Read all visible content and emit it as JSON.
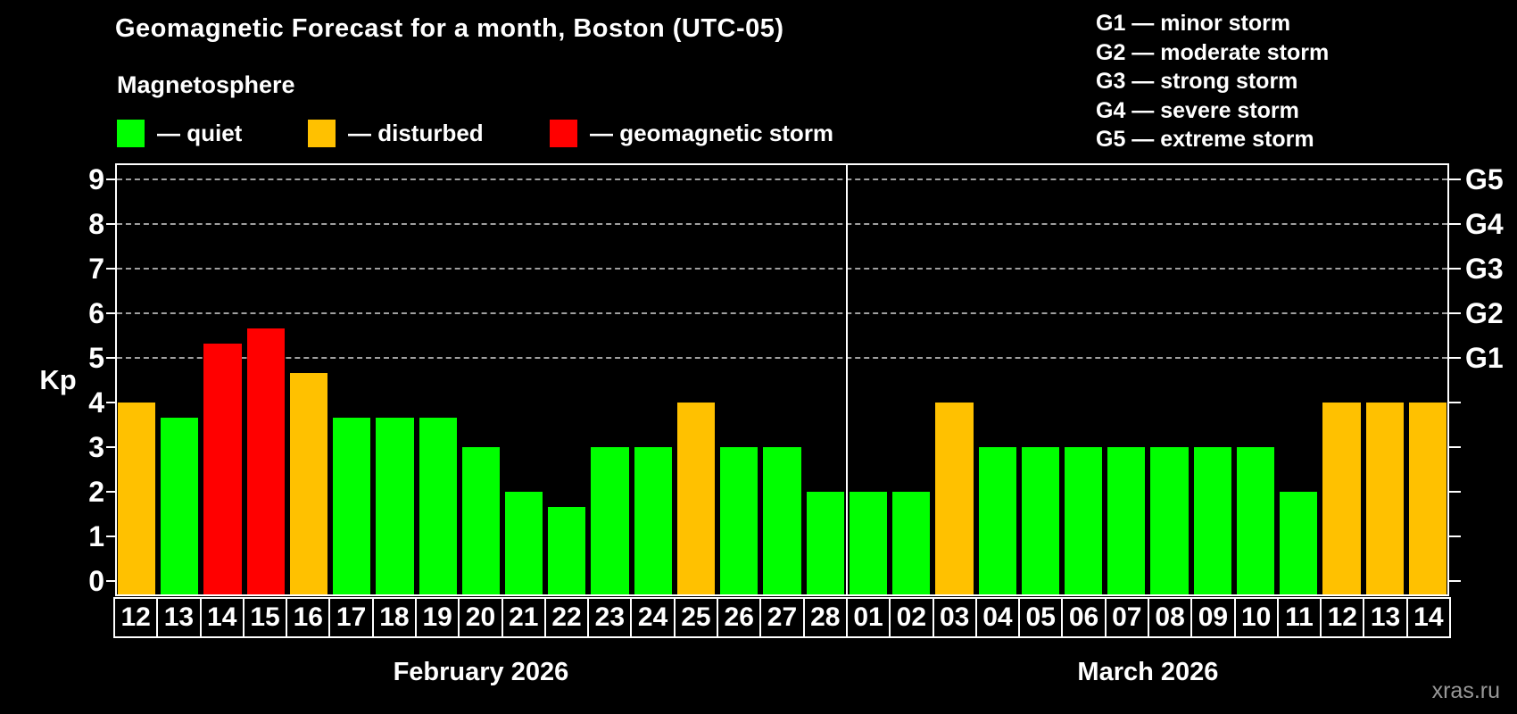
{
  "watermark": "xras.ru",
  "chart_data": {
    "type": "bar",
    "title": "Geomagnetic Forecast for a month, Boston (UTC-05)",
    "subtitle": "Magnetosphere",
    "ylabel": "Kp",
    "ylim": [
      0,
      9
    ],
    "y_ticks": [
      0,
      1,
      2,
      3,
      4,
      5,
      6,
      7,
      8,
      9
    ],
    "gridline_kp_levels": [
      5,
      6,
      7,
      8,
      9
    ],
    "grid": "dashed horizontal lines at storm levels only",
    "legend_items": [
      {
        "label": "— quiet",
        "status": "quiet",
        "color": "#00ff00"
      },
      {
        "label": "— disturbed",
        "status": "disturbed",
        "color": "#ffc100"
      },
      {
        "label": "— geomagnetic storm",
        "status": "storm",
        "color": "#ff0000"
      }
    ],
    "storm_scale_legend": [
      "G1 — minor storm",
      "G2 — moderate storm",
      "G3 — strong storm",
      "G4 — severe storm",
      "G5 — extreme storm"
    ],
    "right_axis_labels": [
      {
        "text": "G1",
        "kp": 5
      },
      {
        "text": "G2",
        "kp": 6
      },
      {
        "text": "G3",
        "kp": 7
      },
      {
        "text": "G4",
        "kp": 8
      },
      {
        "text": "G5",
        "kp": 9
      }
    ],
    "status_colors": {
      "quiet": "#00ff00",
      "disturbed": "#ffc100",
      "storm": "#ff0000"
    },
    "months": [
      {
        "label": "February 2026",
        "bars": [
          {
            "day": "12",
            "kp": 4.0,
            "status": "disturbed"
          },
          {
            "day": "13",
            "kp": 3.67,
            "status": "quiet"
          },
          {
            "day": "14",
            "kp": 5.33,
            "status": "storm"
          },
          {
            "day": "15",
            "kp": 5.67,
            "status": "storm"
          },
          {
            "day": "16",
            "kp": 4.67,
            "status": "disturbed"
          },
          {
            "day": "17",
            "kp": 3.67,
            "status": "quiet"
          },
          {
            "day": "18",
            "kp": 3.67,
            "status": "quiet"
          },
          {
            "day": "19",
            "kp": 3.67,
            "status": "quiet"
          },
          {
            "day": "20",
            "kp": 3.0,
            "status": "quiet"
          },
          {
            "day": "21",
            "kp": 2.0,
            "status": "quiet"
          },
          {
            "day": "22",
            "kp": 1.67,
            "status": "quiet"
          },
          {
            "day": "23",
            "kp": 3.0,
            "status": "quiet"
          },
          {
            "day": "24",
            "kp": 3.0,
            "status": "quiet"
          },
          {
            "day": "25",
            "kp": 4.0,
            "status": "disturbed"
          },
          {
            "day": "26",
            "kp": 3.0,
            "status": "quiet"
          },
          {
            "day": "27",
            "kp": 3.0,
            "status": "quiet"
          },
          {
            "day": "28",
            "kp": 2.0,
            "status": "quiet"
          }
        ]
      },
      {
        "label": "March 2026",
        "bars": [
          {
            "day": "01",
            "kp": 2.0,
            "status": "quiet"
          },
          {
            "day": "02",
            "kp": 2.0,
            "status": "quiet"
          },
          {
            "day": "03",
            "kp": 4.0,
            "status": "disturbed"
          },
          {
            "day": "04",
            "kp": 3.0,
            "status": "quiet"
          },
          {
            "day": "05",
            "kp": 3.0,
            "status": "quiet"
          },
          {
            "day": "06",
            "kp": 3.0,
            "status": "quiet"
          },
          {
            "day": "07",
            "kp": 3.0,
            "status": "quiet"
          },
          {
            "day": "08",
            "kp": 3.0,
            "status": "quiet"
          },
          {
            "day": "09",
            "kp": 3.0,
            "status": "quiet"
          },
          {
            "day": "10",
            "kp": 3.0,
            "status": "quiet"
          },
          {
            "day": "11",
            "kp": 2.0,
            "status": "quiet"
          },
          {
            "day": "12",
            "kp": 4.0,
            "status": "disturbed"
          },
          {
            "day": "13",
            "kp": 4.0,
            "status": "disturbed"
          },
          {
            "day": "14",
            "kp": 4.0,
            "status": "disturbed"
          }
        ]
      }
    ]
  }
}
